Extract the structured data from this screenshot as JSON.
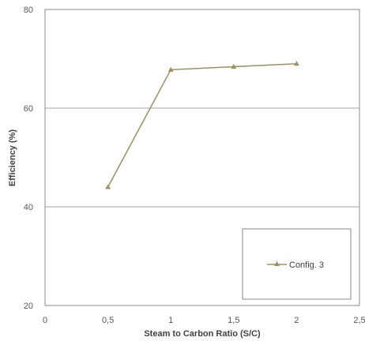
{
  "chart_data": {
    "type": "line",
    "title": "",
    "xlabel": "Steam to Carbon Ratio (S/C)",
    "ylabel": "Efficiency (%)",
    "xlim": [
      0,
      2.5
    ],
    "ylim": [
      20,
      80
    ],
    "x_ticks": [
      "0",
      "0,5",
      "1",
      "1,5",
      "2",
      "2,5"
    ],
    "x_tick_values": [
      0,
      0.5,
      1,
      1.5,
      2,
      2.5
    ],
    "y_ticks": [
      "20",
      "40",
      "60",
      "80"
    ],
    "y_tick_values": [
      20,
      40,
      60,
      80
    ],
    "grid": "horizontal",
    "legend_position": "bottom-right",
    "series": [
      {
        "name": "Config. 3",
        "color": "#9e8f62",
        "marker": "triangle",
        "x": [
          0.5,
          1.0,
          1.5,
          2.0
        ],
        "y": [
          44,
          67.8,
          68.4,
          69
        ]
      }
    ]
  }
}
